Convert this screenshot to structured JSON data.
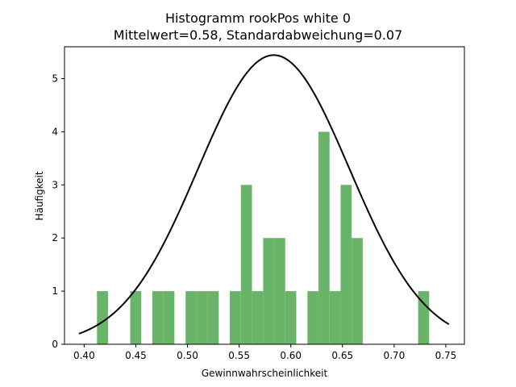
{
  "chart_data": {
    "type": "bar",
    "title": "Histogramm rookPos white 0",
    "subtitle": "Mittelwert=0.58, Standardabweichung=0.07",
    "xlabel": "Gewinnwahrscheinlichkeit",
    "ylabel": "Häufigkeit",
    "xlim": [
      0.381,
      0.768
    ],
    "ylim": [
      0,
      5.6
    ],
    "xticks": [
      0.4,
      0.45,
      0.5,
      0.55,
      0.6,
      0.65,
      0.7,
      0.75
    ],
    "xtick_labels": [
      "0.40",
      "0.45",
      "0.50",
      "0.55",
      "0.60",
      "0.65",
      "0.70",
      "0.75"
    ],
    "yticks": [
      0,
      1,
      2,
      3,
      4,
      5
    ],
    "ytick_labels": [
      "0",
      "1",
      "2",
      "3",
      "4",
      "5"
    ],
    "bin_width": 0.0107,
    "bars": [
      {
        "x0": 0.4124,
        "height": 1
      },
      {
        "x0": 0.4446,
        "height": 1
      },
      {
        "x0": 0.466,
        "height": 1
      },
      {
        "x0": 0.4767,
        "height": 1
      },
      {
        "x0": 0.4982,
        "height": 1
      },
      {
        "x0": 0.5089,
        "height": 1
      },
      {
        "x0": 0.5196,
        "height": 1
      },
      {
        "x0": 0.541,
        "height": 1
      },
      {
        "x0": 0.5517,
        "height": 3
      },
      {
        "x0": 0.5625,
        "height": 1
      },
      {
        "x0": 0.5732,
        "height": 2
      },
      {
        "x0": 0.5839,
        "height": 2
      },
      {
        "x0": 0.5946,
        "height": 1
      },
      {
        "x0": 0.6161,
        "height": 1
      },
      {
        "x0": 0.6268,
        "height": 4
      },
      {
        "x0": 0.6375,
        "height": 1
      },
      {
        "x0": 0.6482,
        "height": 3
      },
      {
        "x0": 0.6589,
        "height": 2
      },
      {
        "x0": 0.7232,
        "height": 1
      }
    ],
    "curve": {
      "type": "normal-pdf",
      "mean": 0.5835,
      "std": 0.0733,
      "x_range": [
        0.395,
        0.753
      ],
      "color": "#000000"
    },
    "colors": {
      "bar": "#6ab46a",
      "curve": "#000000",
      "axes": "#000000"
    },
    "grid": false
  }
}
